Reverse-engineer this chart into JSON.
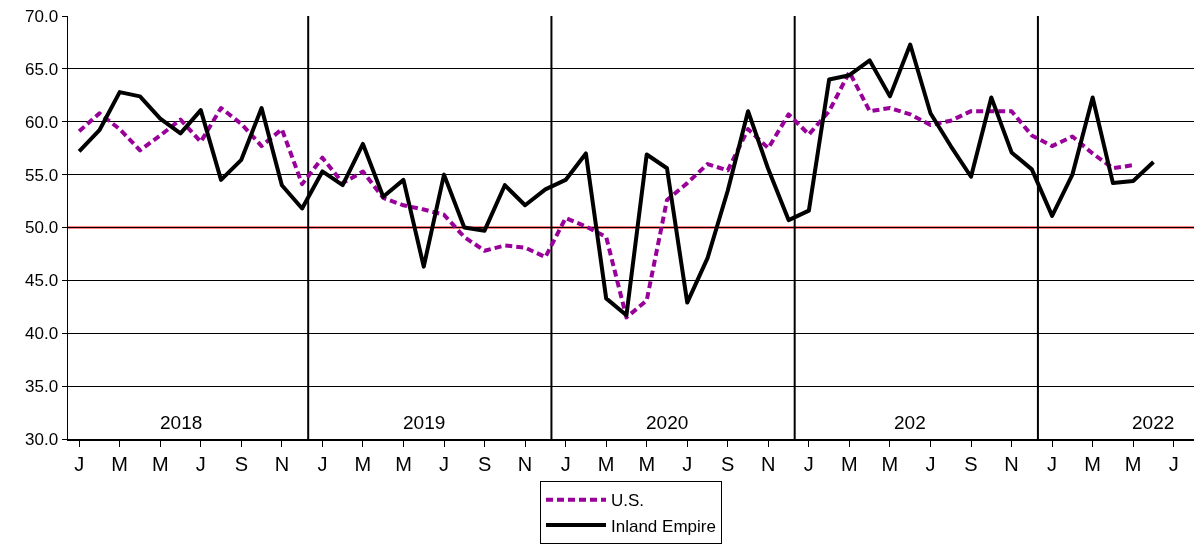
{
  "chart_data": {
    "type": "line",
    "categories": [
      "J",
      null,
      "M",
      null,
      "M",
      null,
      "J",
      null,
      "S",
      null,
      "N",
      null,
      "J",
      null,
      "M",
      null,
      "M",
      null,
      "J",
      null,
      "S",
      null,
      "N",
      null,
      "J",
      null,
      "M",
      null,
      "M",
      null,
      "J",
      null,
      "S",
      null,
      "N",
      null,
      "J",
      null,
      "M",
      null,
      "M",
      null,
      "J",
      null,
      "S",
      null,
      "N",
      null,
      "J",
      null,
      "M",
      null,
      "M",
      null,
      "J"
    ],
    "series": [
      {
        "name": "U.S.",
        "color": "#990099",
        "line_style": "dashed",
        "values": [
          59.1,
          60.8,
          59.3,
          57.3,
          58.7,
          60.2,
          58.1,
          61.3,
          59.8,
          57.7,
          59.3,
          54.1,
          56.6,
          54.2,
          55.3,
          52.8,
          52.1,
          51.7,
          51.2,
          49.1,
          47.8,
          48.3,
          48.1,
          47.2,
          50.9,
          50.1,
          49.1,
          41.5,
          43.1,
          52.6,
          54.2,
          56.0,
          55.4,
          59.3,
          57.5,
          60.7,
          58.8,
          61.0,
          64.7,
          61.0,
          61.3,
          60.7,
          59.7,
          60.1,
          61.0,
          61.0,
          61.0,
          58.7,
          57.7,
          58.6,
          57.0,
          55.6,
          55.9,
          null,
          null
        ]
      },
      {
        "name": "Inland Empire",
        "color": "#000000",
        "line_style": "solid",
        "values": [
          57.2,
          59.2,
          62.8,
          62.4,
          60.3,
          58.9,
          61.1,
          54.5,
          56.4,
          61.3,
          54.0,
          51.8,
          55.3,
          54.0,
          57.9,
          52.9,
          54.5,
          46.3,
          55.0,
          50.0,
          49.7,
          54.0,
          52.1,
          53.6,
          54.5,
          57.0,
          43.3,
          41.7,
          56.9,
          55.6,
          42.9,
          47.1,
          53.5,
          61.0,
          55.5,
          50.7,
          51.6,
          64.0,
          64.4,
          65.8,
          62.4,
          67.3,
          60.8,
          57.7,
          54.8,
          62.3,
          57.1,
          55.5,
          51.1,
          55.0,
          62.3,
          54.2,
          54.4,
          56.2,
          null
        ]
      }
    ],
    "ylim": [
      30,
      70
    ],
    "yticks": [
      {
        "value": 30,
        "label": "30.0"
      },
      {
        "value": 35,
        "label": "35.0"
      },
      {
        "value": 40,
        "label": "40.0"
      },
      {
        "value": 45,
        "label": "45.0"
      },
      {
        "value": 50,
        "label": "50.0"
      },
      {
        "value": 55,
        "label": "55.0"
      },
      {
        "value": 60,
        "label": "60.0"
      },
      {
        "value": 65,
        "label": "65.0"
      },
      {
        "value": 70,
        "label": "70.0"
      }
    ],
    "ref_lines": [
      {
        "axis": "y",
        "value": 50,
        "color": "#ff0000"
      }
    ],
    "annotations": [
      "2018",
      "2019",
      "2020",
      "202",
      "2022"
    ],
    "grid": "y",
    "legend": "bottom",
    "marker": "none"
  }
}
